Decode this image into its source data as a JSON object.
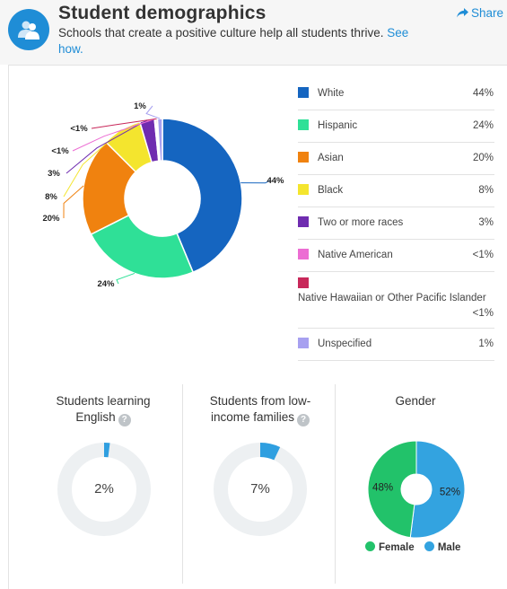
{
  "header": {
    "title": "Student demographics",
    "subtitle": "Schools that create a positive culture help all students thrive. ",
    "see_link": "See how.",
    "share_label": "Share"
  },
  "chart_data": [
    {
      "type": "pie",
      "series": [
        {
          "label": "White",
          "value": 44,
          "display": "44%",
          "color": "#1565c0"
        },
        {
          "label": "Hispanic",
          "value": 24,
          "display": "24%",
          "color": "#2fe097"
        },
        {
          "label": "Asian",
          "value": 20,
          "display": "20%",
          "color": "#f0820f"
        },
        {
          "label": "Black",
          "value": 8,
          "display": "8%",
          "color": "#f4e52e"
        },
        {
          "label": "Two or more races",
          "value": 3,
          "display": "3%",
          "color": "#6f2cb0"
        },
        {
          "label": "Native American",
          "value": 0.3,
          "display": "<1%",
          "color": "#ec6dd3"
        },
        {
          "label": "Native Hawaiian or Other Pacific Islander",
          "value": 0.3,
          "display": "<1%",
          "color": "#c8285a"
        },
        {
          "label": "Unspecified",
          "value": 1,
          "display": "1%",
          "color": "#a7a0f0"
        }
      ]
    },
    {
      "type": "pie",
      "title": "Students learning English",
      "value": 2,
      "display": "2%",
      "color": "#2f9fe0",
      "track_color": "#edf0f2"
    },
    {
      "type": "pie",
      "title": "Students from low-income families",
      "value": 7,
      "display": "7%",
      "color": "#2f9fe0",
      "track_color": "#edf0f2"
    },
    {
      "type": "pie",
      "title": "Gender",
      "series": [
        {
          "label": "Female",
          "value": 48,
          "display": "48%",
          "color": "#22c26a"
        },
        {
          "label": "Male",
          "value": 52,
          "display": "52%",
          "color": "#33a3e0"
        }
      ]
    }
  ],
  "stats": {
    "english_line1": "Students learning",
    "english_line2": "English",
    "lowincome_line1": "Students from low-",
    "lowincome_line2": "income families",
    "gender_title": "Gender"
  },
  "icons": {
    "header": "people-icon",
    "share": "share-arrow-icon",
    "help": "question-icon"
  },
  "help_glyph": "?"
}
